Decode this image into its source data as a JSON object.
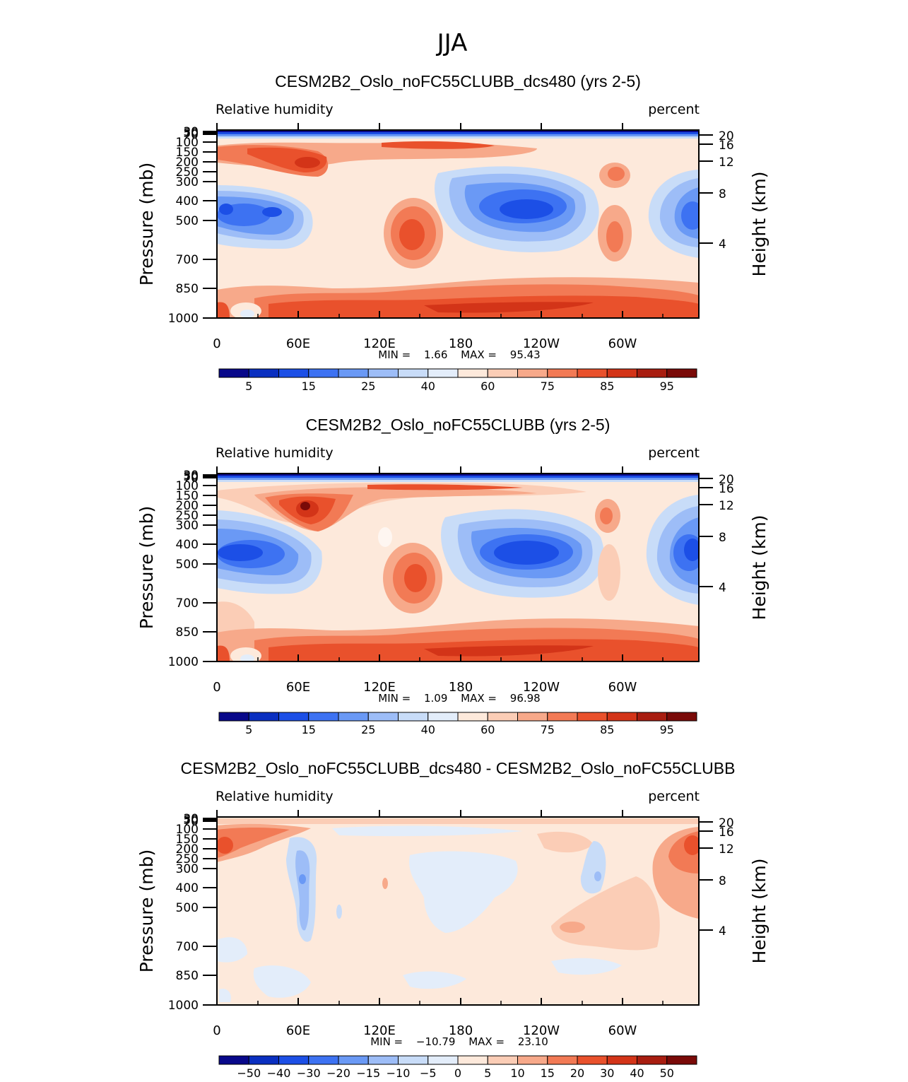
{
  "figure": {
    "title": "JJA"
  },
  "chart_data": [
    {
      "type": "heatmap",
      "title": "CESM2B2_Oslo_noFC55CLUBB_dcs480 (yrs 2-5)",
      "left_label": "Relative humidity",
      "right_label": "percent",
      "ylabel": "Pressure (mb)",
      "ylabel_right": "Height (km)",
      "x_ticks": [
        "0",
        "60E",
        "120E",
        "180",
        "120W",
        "60W"
      ],
      "y_ticks": [
        "30",
        "50",
        "70",
        "100",
        "150",
        "200",
        "250",
        "300",
        "400",
        "500",
        "700",
        "850",
        "1000"
      ],
      "y_ticks_right": [
        "20",
        "16",
        "12",
        "8",
        "4"
      ],
      "stats": {
        "min_label": "MIN =",
        "min": "1.66",
        "max_label": "MAX =",
        "max": "95.43"
      },
      "colorbar": {
        "labels": [
          "5",
          "15",
          "25",
          "40",
          "60",
          "75",
          "85",
          "95"
        ],
        "colors": [
          "#08088a",
          "#0a2fc0",
          "#1c4fe6",
          "#3d72f2",
          "#6a99f5",
          "#9dbdf7",
          "#c8dcf8",
          "#e3edfa",
          "#fde9db",
          "#fbcdb6",
          "#f7a98a",
          "#f27a55",
          "#e9512c",
          "#d33418",
          "#a81d10",
          "#7a0a08"
        ]
      }
    },
    {
      "type": "heatmap",
      "title": "CESM2B2_Oslo_noFC55CLUBB (yrs 2-5)",
      "left_label": "Relative humidity",
      "right_label": "percent",
      "ylabel": "Pressure (mb)",
      "ylabel_right": "Height (km)",
      "x_ticks": [
        "0",
        "60E",
        "120E",
        "180",
        "120W",
        "60W"
      ],
      "y_ticks": [
        "30",
        "50",
        "70",
        "100",
        "150",
        "200",
        "250",
        "300",
        "400",
        "500",
        "700",
        "850",
        "1000"
      ],
      "y_ticks_right": [
        "20",
        "16",
        "12",
        "8",
        "4"
      ],
      "stats": {
        "min_label": "MIN =",
        "min": "1.09",
        "max_label": "MAX =",
        "max": "96.98"
      },
      "colorbar": {
        "labels": [
          "5",
          "15",
          "25",
          "40",
          "60",
          "75",
          "85",
          "95"
        ],
        "colors": [
          "#08088a",
          "#0a2fc0",
          "#1c4fe6",
          "#3d72f2",
          "#6a99f5",
          "#9dbdf7",
          "#c8dcf8",
          "#e3edfa",
          "#fde9db",
          "#fbcdb6",
          "#f7a98a",
          "#f27a55",
          "#e9512c",
          "#d33418",
          "#a81d10",
          "#7a0a08"
        ]
      }
    },
    {
      "type": "heatmap",
      "title": "CESM2B2_Oslo_noFC55CLUBB_dcs480 - CESM2B2_Oslo_noFC55CLUBB",
      "left_label": "Relative humidity",
      "right_label": "percent",
      "ylabel": "Pressure (mb)",
      "ylabel_right": "Height (km)",
      "x_ticks": [
        "0",
        "60E",
        "120E",
        "180",
        "120W",
        "60W"
      ],
      "y_ticks": [
        "30",
        "50",
        "70",
        "100",
        "150",
        "200",
        "250",
        "300",
        "400",
        "500",
        "700",
        "850",
        "1000"
      ],
      "y_ticks_right": [
        "20",
        "16",
        "12",
        "8",
        "4"
      ],
      "stats": {
        "min_label": "MIN =",
        "min": "−10.79",
        "max_label": "MAX =",
        "max": "23.10"
      },
      "colorbar": {
        "labels": [
          "−50",
          "−40",
          "−30",
          "−20",
          "−15",
          "−10",
          "−5",
          "0",
          "5",
          "10",
          "15",
          "20",
          "30",
          "40",
          "50"
        ],
        "colors": [
          "#08088a",
          "#0a2fc0",
          "#1c4fe6",
          "#3d72f2",
          "#6a99f5",
          "#9dbdf7",
          "#c8dcf8",
          "#e3edfa",
          "#fde9db",
          "#fbcdb6",
          "#f7a98a",
          "#f27a55",
          "#e9512c",
          "#d33418",
          "#a81d10",
          "#7a0a08"
        ]
      }
    }
  ]
}
